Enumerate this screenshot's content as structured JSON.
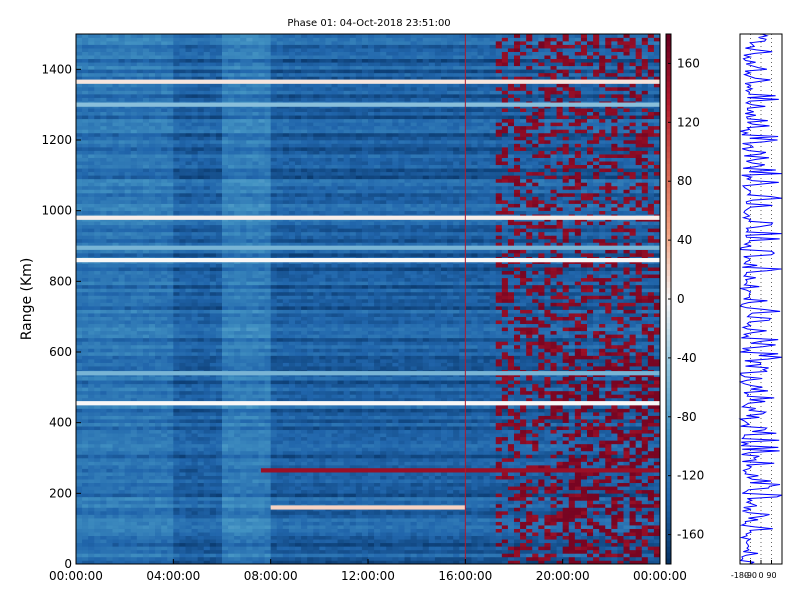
{
  "chart_data": {
    "type": "heatmap",
    "title": "Phase 01: 04-Oct-2018 23:51:00",
    "ylabel": "Range (Km)",
    "xlabel": "",
    "x_ticks": [
      "00:00:00",
      "04:00:00",
      "08:00:00",
      "12:00:00",
      "16:00:00",
      "20:00:00",
      "00:00:00"
    ],
    "x_range_hours": [
      0,
      24
    ],
    "y_ticks": [
      0,
      200,
      400,
      600,
      800,
      1000,
      1200,
      1400
    ],
    "y_range": [
      0,
      1500
    ],
    "colorbar": {
      "ticks": [
        160,
        120,
        80,
        40,
        0,
        -40,
        -80,
        -120,
        -160
      ],
      "range": [
        -180,
        180
      ],
      "colormap": "RdBu_r"
    },
    "marker_line_hour": 16.0,
    "background_phase": -140,
    "bright_bands": [
      {
        "range": 1365,
        "value": 10
      },
      {
        "range": 1300,
        "value": -50
      },
      {
        "range": 980,
        "value": 5
      },
      {
        "range": 895,
        "value": -60
      },
      {
        "range": 860,
        "value": 0
      },
      {
        "range": 455,
        "value": 0
      },
      {
        "range": 540,
        "value": -60
      },
      {
        "range": 265,
        "value": 150
      },
      {
        "range": 160,
        "value": 20
      }
    ],
    "side_panel": {
      "x_ticks": [
        "-180",
        "-90",
        "0",
        "90"
      ],
      "x_range": [
        -180,
        180
      ],
      "line_color": "#0000ff"
    }
  }
}
